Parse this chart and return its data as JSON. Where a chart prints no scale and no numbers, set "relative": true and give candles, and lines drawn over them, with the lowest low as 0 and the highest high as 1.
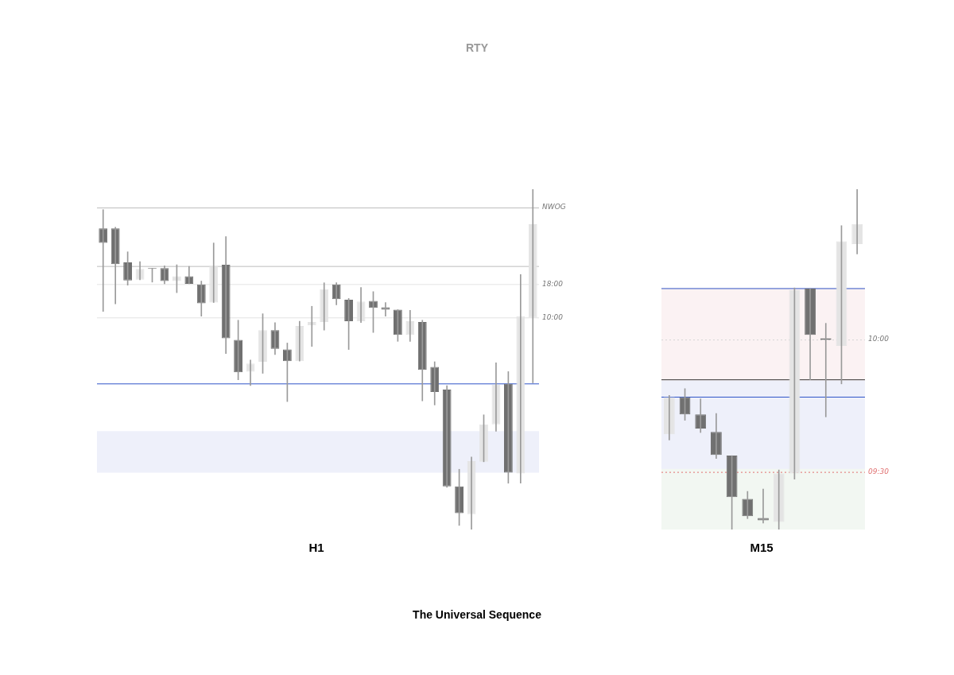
{
  "chart_data": [
    {
      "type": "candlestick",
      "title": "RTY",
      "xlabel": "H1",
      "relative": true,
      "tick_labels": false,
      "legend": false,
      "categories": [
        null,
        null,
        null,
        null,
        null,
        null,
        null,
        null,
        null,
        null,
        null,
        null,
        null,
        null,
        null,
        null,
        null,
        null,
        null,
        null,
        null,
        null,
        null,
        null,
        null,
        null,
        null,
        null,
        null,
        null,
        null,
        null,
        null,
        null,
        null,
        null
      ],
      "ohlc": [
        [
          0.885,
          0.94,
          0.641,
          0.842
        ],
        [
          0.885,
          0.888,
          0.663,
          0.78
        ],
        [
          0.785,
          0.816,
          0.718,
          0.732
        ],
        [
          0.734,
          0.787,
          0.734,
          0.766
        ],
        [
          0.768,
          0.768,
          0.727,
          0.766
        ],
        [
          0.768,
          0.775,
          0.722,
          0.73
        ],
        [
          0.73,
          0.778,
          0.696,
          0.744
        ],
        [
          0.744,
          0.773,
          0.722,
          0.722
        ],
        [
          0.72,
          0.73,
          0.627,
          0.665
        ],
        [
          0.667,
          0.842,
          0.667,
          0.775
        ],
        [
          0.778,
          0.861,
          0.517,
          0.562
        ],
        [
          0.557,
          0.615,
          0.44,
          0.462
        ],
        [
          0.464,
          0.498,
          0.423,
          0.488
        ],
        [
          0.493,
          0.634,
          0.459,
          0.586
        ],
        [
          0.586,
          0.608,
          0.514,
          0.531
        ],
        [
          0.529,
          0.548,
          0.376,
          0.495
        ],
        [
          0.495,
          0.612,
          0.495,
          0.598
        ],
        [
          0.6,
          0.656,
          0.538,
          0.61
        ],
        [
          0.61,
          0.725,
          0.586,
          0.706
        ],
        [
          0.72,
          0.725,
          0.66,
          0.677
        ],
        [
          0.675,
          0.679,
          0.529,
          0.612
        ],
        [
          0.612,
          0.711,
          0.608,
          0.67
        ],
        [
          0.672,
          0.699,
          0.579,
          0.651
        ],
        [
          0.653,
          0.667,
          0.627,
          0.646
        ],
        [
          0.646,
          0.646,
          0.553,
          0.572
        ],
        [
          0.572,
          0.644,
          0.553,
          0.612
        ],
        [
          0.61,
          0.615,
          0.378,
          0.469
        ],
        [
          0.478,
          0.493,
          0.366,
          0.404
        ],
        [
          0.411,
          0.423,
          0.124,
          0.127
        ],
        [
          0.127,
          0.177,
          0.012,
          0.048
        ],
        [
          0.045,
          0.213,
          0,
          0.201
        ],
        [
          0.199,
          0.337,
          0.199,
          0.309
        ],
        [
          0.309,
          0.49,
          0.289,
          0.426
        ],
        [
          0.428,
          0.464,
          0.136,
          0.167
        ],
        [
          0.165,
          0.749,
          0.136,
          0.627
        ],
        [
          0.622,
          1,
          0.431,
          0.897
        ]
      ],
      "colors": [
        "#707070",
        "#707070",
        "#707070",
        "#e4e4e4",
        "#707070",
        "#707070",
        "#e4e4e4",
        "#707070",
        "#707070",
        "#e4e4e4",
        "#707070",
        "#707070",
        "#e4e4e4",
        "#e4e4e4",
        "#707070",
        "#707070",
        "#e4e4e4",
        "#e4e4e4",
        "#e4e4e4",
        "#707070",
        "#707070",
        "#e4e4e4",
        "#707070",
        "#707070",
        "#707070",
        "#e4e4e4",
        "#707070",
        "#707070",
        "#707070",
        "#707070",
        "#e4e4e4",
        "#e4e4e4",
        "#e4e4e4",
        "#707070",
        "#e4e4e4",
        "#e4e4e4"
      ],
      "ref_lines": [
        {
          "axis": "y",
          "value": 0.945,
          "label": "NWOG",
          "color": "#bdbdbd"
        },
        {
          "axis": "y",
          "value": 0.773,
          "color": "#bdbdbd"
        },
        {
          "axis": "y",
          "value": 0.72,
          "color": "#e3e3e3",
          "line_style": "solid"
        },
        {
          "axis": "y",
          "value": 0.622,
          "color": "#e3e3e3",
          "line_style": "solid"
        },
        {
          "axis": "y",
          "value": 0.428,
          "color": "#2f55c8"
        }
      ],
      "bands": [
        {
          "axis": "y",
          "from": 0.167,
          "to": 0.289,
          "color": "#eef0fa"
        }
      ],
      "annotations": [
        "18:00",
        "10:00",
        "The Universal Sequence"
      ]
    },
    {
      "type": "candlestick",
      "xlabel": "M15",
      "relative": true,
      "tick_labels": false,
      "legend": false,
      "categories": [
        null,
        null,
        null,
        null,
        null,
        null,
        null,
        null,
        null,
        null,
        null,
        null,
        null
      ],
      "ohlc": [
        [
          0.28,
          0.394,
          0.263,
          0.389
        ],
        [
          0.389,
          0.414,
          0.321,
          0.338
        ],
        [
          0.338,
          0.384,
          0.285,
          0.297
        ],
        [
          0.287,
          0.341,
          0.209,
          0.219
        ],
        [
          0.217,
          0.217,
          0,
          0.095
        ],
        [
          0.09,
          0.112,
          0.032,
          0.039
        ],
        [
          0.034,
          0.119,
          0.019,
          0.027
        ],
        [
          0.022,
          0.175,
          0,
          0.165
        ],
        [
          0.165,
          0.71,
          0.148,
          0.703
        ],
        [
          0.708,
          0.708,
          0.44,
          0.572
        ],
        [
          0.562,
          0.606,
          0.331,
          0.557
        ],
        [
          0.54,
          0.893,
          0.428,
          0.847
        ],
        [
          0.839,
          1,
          0.81,
          0.898
        ]
      ],
      "colors": [
        "#e4e4e4",
        "#707070",
        "#707070",
        "#707070",
        "#707070",
        "#707070",
        "#707070",
        "#e4e4e4",
        "#e4e4e4",
        "#707070",
        "#707070",
        "#e4e4e4",
        "#e4e4e4"
      ],
      "ref_lines": [
        {
          "axis": "y",
          "value": 0.708,
          "color": "#2f55c8"
        },
        {
          "axis": "y",
          "value": 0.557,
          "color": "#d6d6d6",
          "line_style": "dotted"
        },
        {
          "axis": "y",
          "value": 0.44,
          "color": "#333333"
        },
        {
          "axis": "y",
          "value": 0.389,
          "color": "#2f55c8"
        },
        {
          "axis": "y",
          "value": 0.168,
          "color": "#e07070",
          "line_style": "dotted"
        }
      ],
      "annotations": [
        "10:00",
        "09:30"
      ],
      "bands": [
        {
          "axis": "y",
          "from": 0.355,
          "to": 0.71,
          "color": "#fbf2f3"
        },
        {
          "axis": "y",
          "from": 0,
          "to": 0.355,
          "color": "#f2f7f2"
        },
        {
          "axis": "y",
          "from": 0.178,
          "to": 0.438,
          "color": "#eef0fa"
        }
      ]
    }
  ]
}
